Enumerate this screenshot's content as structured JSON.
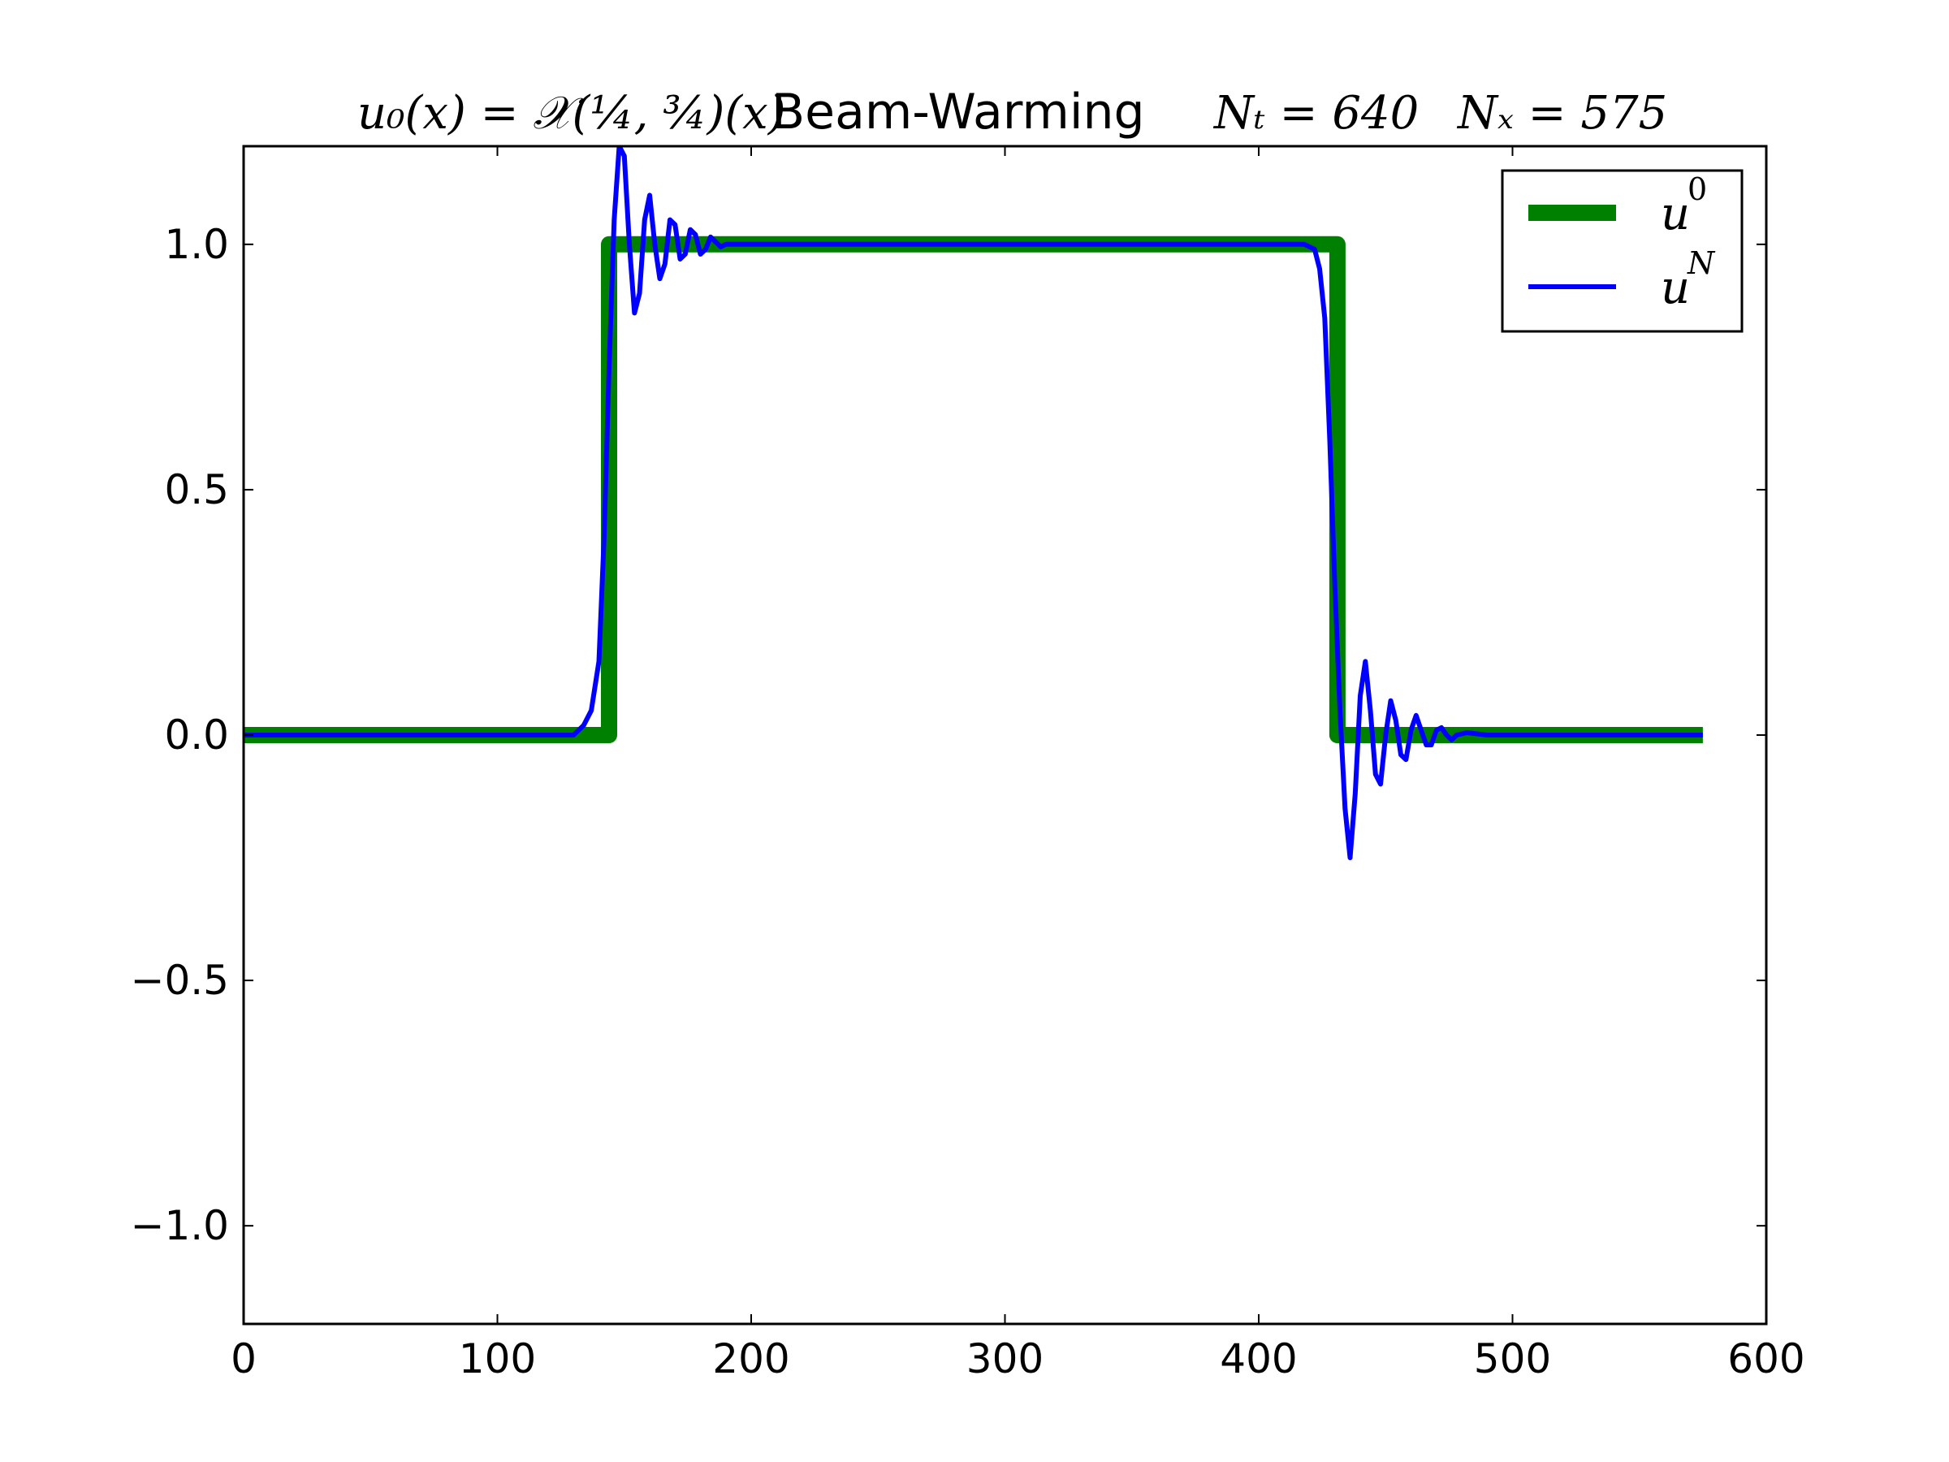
{
  "chart_data": {
    "type": "line",
    "title": {
      "initial_condition": "u₀(x) = 𝒳(¼, ¾)(x)",
      "method": "Beam-Warming",
      "nt": "Nₜ = 640",
      "nx": "Nₓ = 575"
    },
    "xlabel": "",
    "ylabel": "",
    "xlim": [
      0,
      600
    ],
    "ylim": [
      -1.2,
      1.2
    ],
    "x_ticks": [
      0,
      100,
      200,
      300,
      400,
      500,
      600
    ],
    "x_tick_labels": [
      "0",
      "100",
      "200",
      "300",
      "400",
      "500",
      "600"
    ],
    "y_ticks": [
      1.0,
      0.5,
      0.0,
      -0.5,
      -1.0
    ],
    "y_tick_labels": [
      "1.0",
      "0.5",
      "0.0",
      "−0.5",
      "−1.0"
    ],
    "grid": false,
    "legend_position": "top-right",
    "series": [
      {
        "name": "u0",
        "legend_label": "u",
        "legend_sup": "0",
        "color": "#008000",
        "x": [
          0,
          144,
          144,
          431,
          431,
          575
        ],
        "y": [
          0,
          0,
          1,
          1,
          0,
          0
        ]
      },
      {
        "name": "uN",
        "legend_label": "u",
        "legend_sup": "N",
        "color": "#0000ff",
        "x": [
          0,
          130,
          134,
          137,
          140,
          142,
          144,
          146,
          148,
          150,
          152,
          154,
          156,
          158,
          160,
          162,
          164,
          166,
          168,
          170,
          172,
          174,
          176,
          178,
          180,
          182,
          184,
          186,
          188,
          190,
          194,
          200,
          210,
          230,
          300,
          400,
          418,
          422,
          424,
          426,
          428,
          430,
          432,
          434,
          436,
          438,
          440,
          442,
          444,
          446,
          448,
          450,
          452,
          454,
          456,
          458,
          460,
          462,
          464,
          466,
          468,
          470,
          472,
          474,
          476,
          478,
          482,
          490,
          500,
          520,
          575
        ],
        "y": [
          0,
          0,
          0.02,
          0.05,
          0.15,
          0.4,
          0.75,
          1.05,
          1.2,
          1.18,
          1.0,
          0.86,
          0.9,
          1.05,
          1.1,
          1.0,
          0.93,
          0.96,
          1.05,
          1.04,
          0.97,
          0.98,
          1.03,
          1.02,
          0.98,
          0.99,
          1.015,
          1.005,
          0.995,
          1.0,
          1.0,
          1.0,
          1.0,
          1.0,
          1.0,
          1.0,
          1.0,
          0.99,
          0.95,
          0.85,
          0.6,
          0.3,
          0.05,
          -0.15,
          -0.25,
          -0.12,
          0.08,
          0.15,
          0.05,
          -0.08,
          -0.1,
          0.0,
          0.07,
          0.03,
          -0.04,
          -0.05,
          0.01,
          0.04,
          0.01,
          -0.02,
          -0.02,
          0.01,
          0.015,
          0.0,
          -0.01,
          0.0,
          0.005,
          0.0,
          0.0,
          0.0,
          0.0
        ]
      }
    ]
  }
}
